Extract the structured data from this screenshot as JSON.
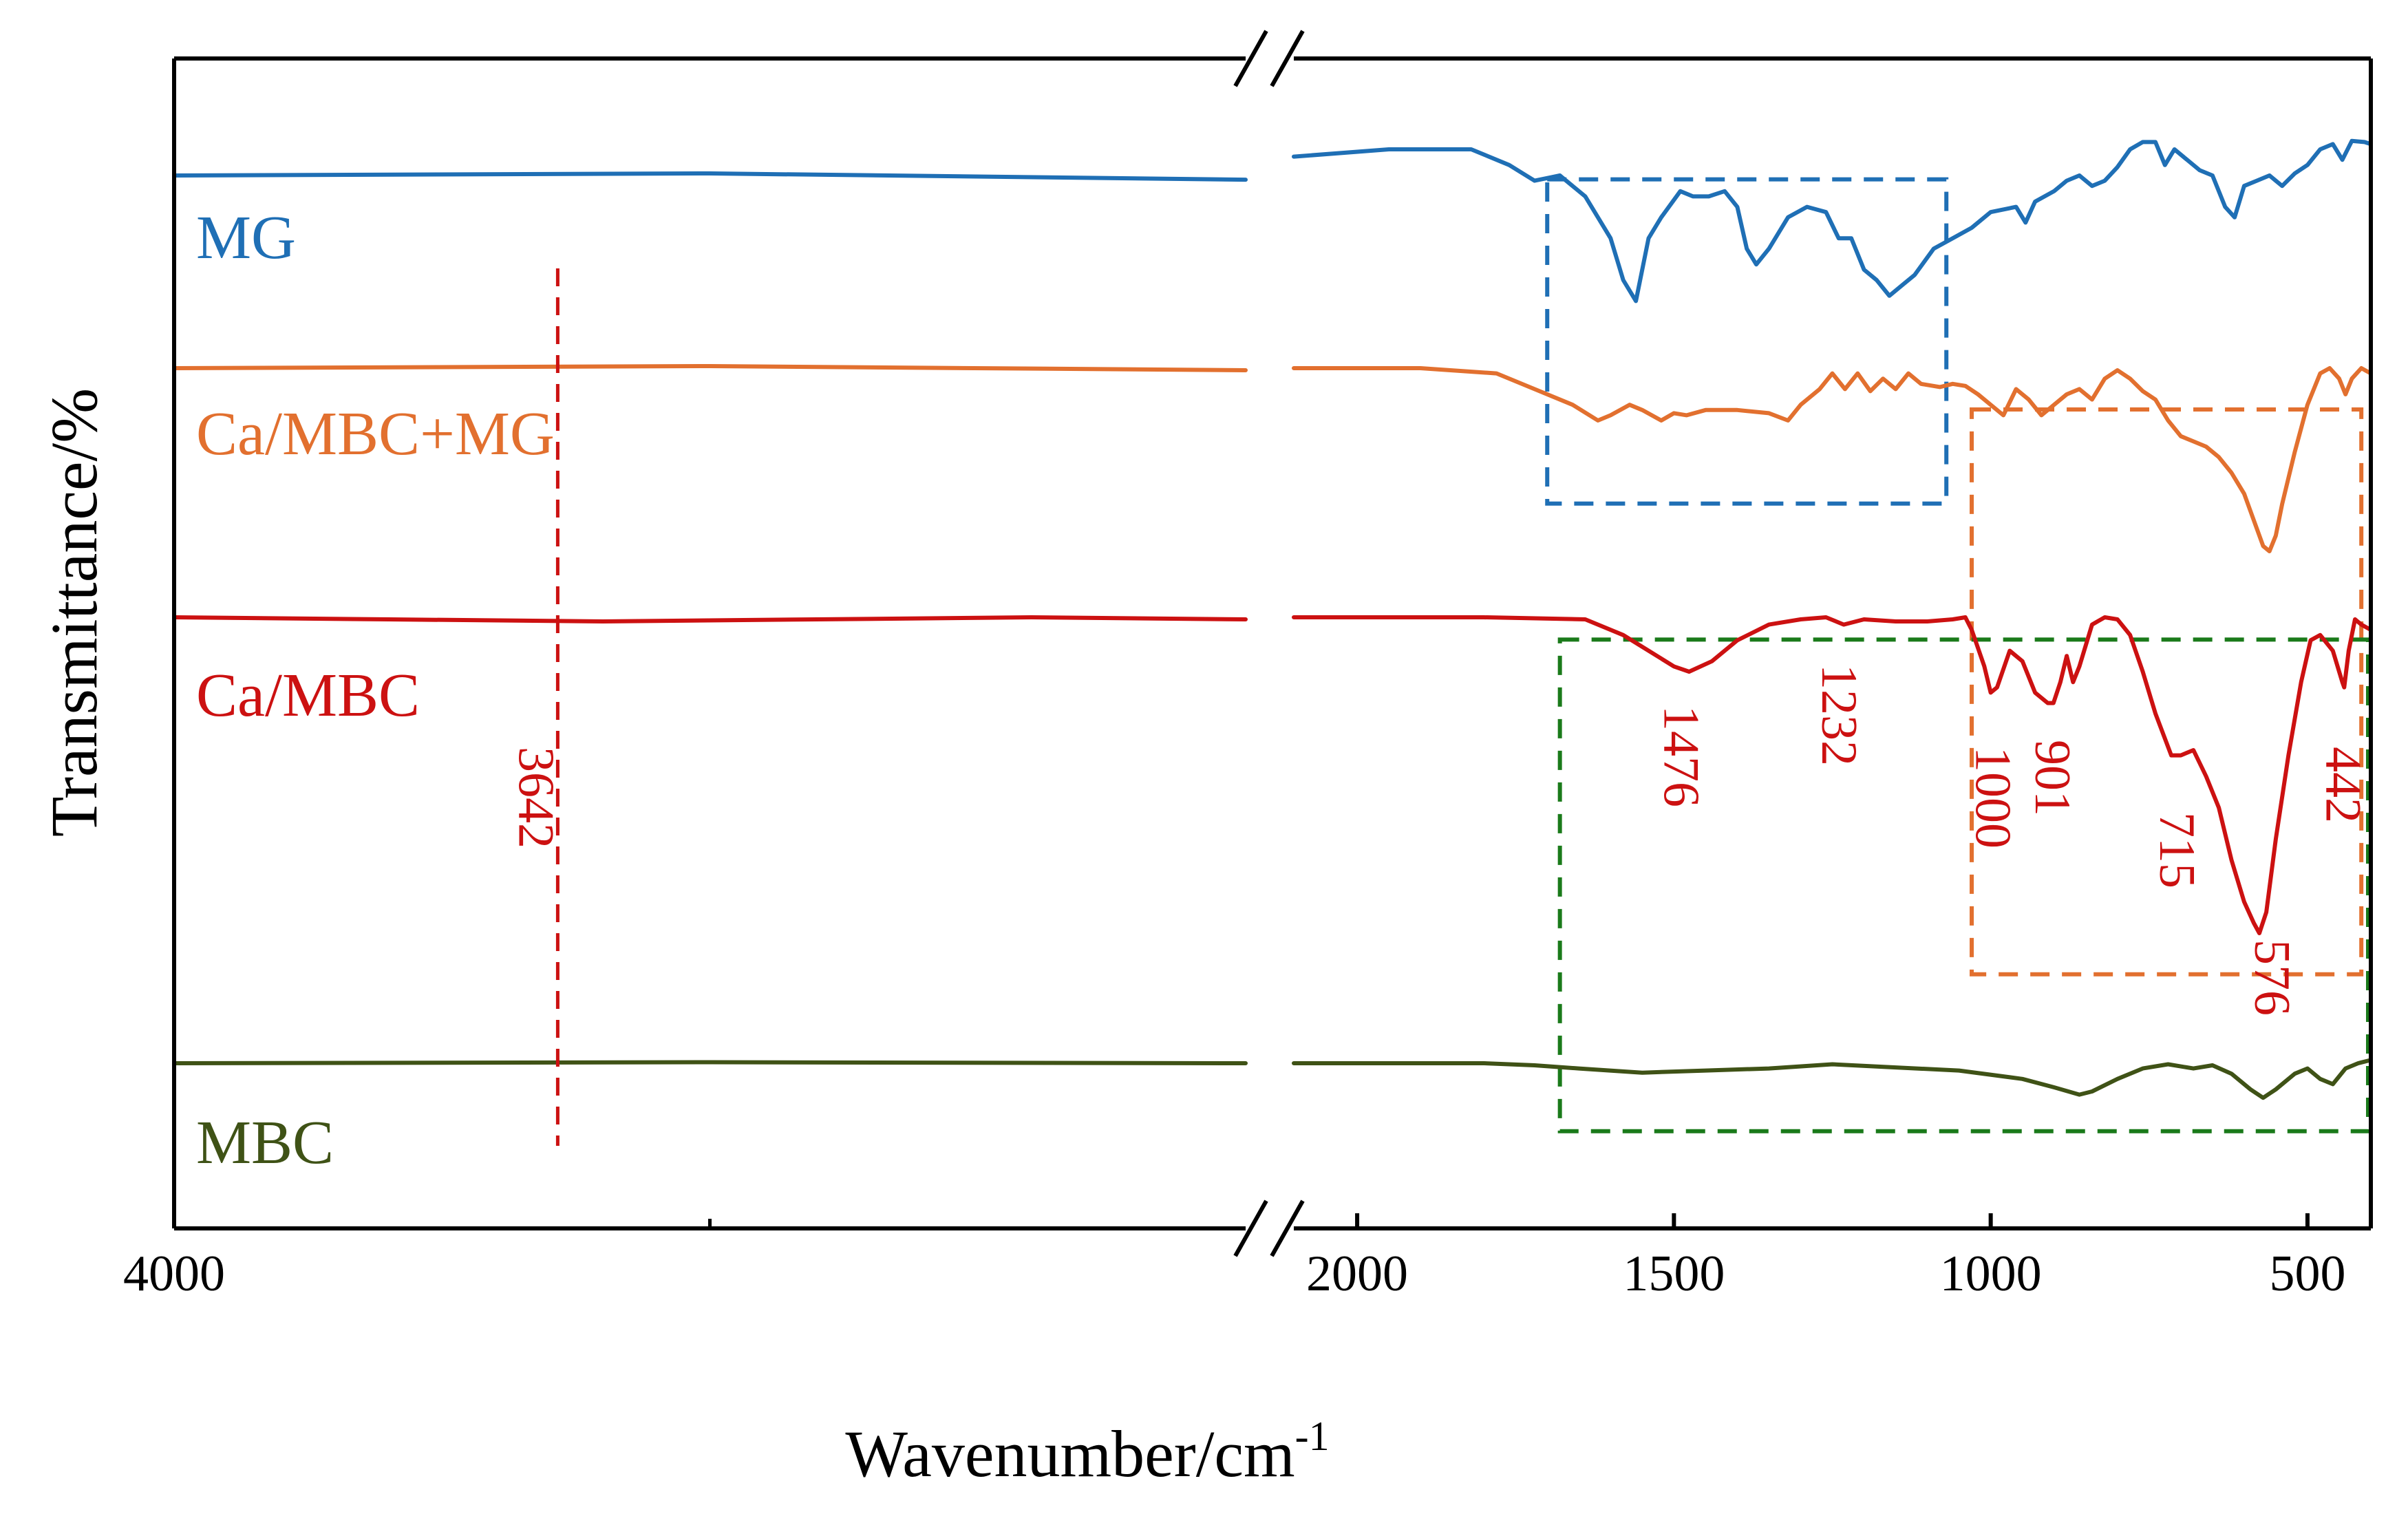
{
  "chart_data": {
    "type": "line",
    "title": "",
    "xlabel": "Wavenumber/cm",
    "xlabel_sup": "-1",
    "ylabel": "Transmittance/%",
    "x_axis": {
      "reversed": true,
      "broken": true,
      "break_between": [
        3000,
        2100
      ],
      "segments": [
        [
          4000,
          3000
        ],
        [
          2100,
          400
        ]
      ],
      "tick_labels": [
        {
          "value": 4000,
          "label": "4000"
        },
        {
          "value": 2000,
          "label": "2000"
        },
        {
          "value": 1500,
          "label": "1500"
        },
        {
          "value": 1000,
          "label": "1000"
        },
        {
          "value": 500,
          "label": "500"
        }
      ],
      "minor_ticks": [
        3500
      ]
    },
    "colors": {
      "MG": "#1f6fb5",
      "Ca/MBC+MG": "#e2702f",
      "Ca/MBC": "#cc1111",
      "MBC": "#3f5216",
      "box_green": "#1a7a1a"
    },
    "series": [
      {
        "name": "MG",
        "label": "MG",
        "baseline": 0.86,
        "points": [
          [
            4000,
            0.86
          ],
          [
            3500,
            0.862
          ],
          [
            3000,
            0.856
          ],
          [
            2100,
            0.878
          ],
          [
            1950,
            0.885
          ],
          [
            1820,
            0.885
          ],
          [
            1760,
            0.87
          ],
          [
            1720,
            0.855
          ],
          [
            1680,
            0.86
          ],
          [
            1640,
            0.84
          ],
          [
            1600,
            0.8
          ],
          [
            1580,
            0.76
          ],
          [
            1560,
            0.74
          ],
          [
            1540,
            0.8
          ],
          [
            1520,
            0.82
          ],
          [
            1490,
            0.845
          ],
          [
            1470,
            0.84
          ],
          [
            1445,
            0.84
          ],
          [
            1420,
            0.845
          ],
          [
            1400,
            0.83
          ],
          [
            1385,
            0.79
          ],
          [
            1370,
            0.775
          ],
          [
            1350,
            0.79
          ],
          [
            1320,
            0.82
          ],
          [
            1290,
            0.83
          ],
          [
            1260,
            0.825
          ],
          [
            1240,
            0.8
          ],
          [
            1220,
            0.8
          ],
          [
            1200,
            0.77
          ],
          [
            1180,
            0.76
          ],
          [
            1160,
            0.745
          ],
          [
            1140,
            0.755
          ],
          [
            1120,
            0.765
          ],
          [
            1090,
            0.79
          ],
          [
            1060,
            0.8
          ],
          [
            1030,
            0.81
          ],
          [
            1000,
            0.825
          ],
          [
            960,
            0.83
          ],
          [
            945,
            0.815
          ],
          [
            930,
            0.835
          ],
          [
            900,
            0.845
          ],
          [
            880,
            0.855
          ],
          [
            860,
            0.86
          ],
          [
            840,
            0.85
          ],
          [
            820,
            0.855
          ],
          [
            800,
            0.868
          ],
          [
            780,
            0.885
          ],
          [
            760,
            0.892
          ],
          [
            740,
            0.892
          ],
          [
            725,
            0.87
          ],
          [
            710,
            0.885
          ],
          [
            690,
            0.875
          ],
          [
            670,
            0.865
          ],
          [
            650,
            0.86
          ],
          [
            630,
            0.83
          ],
          [
            615,
            0.82
          ],
          [
            600,
            0.85
          ],
          [
            580,
            0.855
          ],
          [
            560,
            0.86
          ],
          [
            540,
            0.85
          ],
          [
            520,
            0.862
          ],
          [
            500,
            0.87
          ],
          [
            480,
            0.885
          ],
          [
            460,
            0.89
          ],
          [
            445,
            0.875
          ],
          [
            430,
            0.893
          ],
          [
            410,
            0.892
          ],
          [
            400,
            0.89
          ]
        ]
      },
      {
        "name": "Ca/MBC+MG",
        "label": "Ca/MBC+MG",
        "baseline": 0.65,
        "points": [
          [
            4000,
            0.65
          ],
          [
            3500,
            0.652
          ],
          [
            3000,
            0.648
          ],
          [
            2100,
            0.65
          ],
          [
            1900,
            0.65
          ],
          [
            1780,
            0.645
          ],
          [
            1720,
            0.63
          ],
          [
            1660,
            0.615
          ],
          [
            1620,
            0.6
          ],
          [
            1600,
            0.605
          ],
          [
            1570,
            0.615
          ],
          [
            1550,
            0.61
          ],
          [
            1520,
            0.6
          ],
          [
            1500,
            0.607
          ],
          [
            1480,
            0.605
          ],
          [
            1450,
            0.61
          ],
          [
            1400,
            0.61
          ],
          [
            1350,
            0.607
          ],
          [
            1320,
            0.6
          ],
          [
            1300,
            0.615
          ],
          [
            1270,
            0.63
          ],
          [
            1250,
            0.645
          ],
          [
            1230,
            0.63
          ],
          [
            1210,
            0.645
          ],
          [
            1190,
            0.628
          ],
          [
            1170,
            0.64
          ],
          [
            1150,
            0.63
          ],
          [
            1130,
            0.645
          ],
          [
            1110,
            0.635
          ],
          [
            1080,
            0.632
          ],
          [
            1060,
            0.635
          ],
          [
            1040,
            0.633
          ],
          [
            1020,
            0.625
          ],
          [
            1000,
            0.615
          ],
          [
            980,
            0.605
          ],
          [
            960,
            0.63
          ],
          [
            940,
            0.62
          ],
          [
            920,
            0.605
          ],
          [
            900,
            0.615
          ],
          [
            880,
            0.625
          ],
          [
            860,
            0.63
          ],
          [
            840,
            0.62
          ],
          [
            820,
            0.64
          ],
          [
            800,
            0.648
          ],
          [
            780,
            0.64
          ],
          [
            760,
            0.628
          ],
          [
            740,
            0.62
          ],
          [
            720,
            0.6
          ],
          [
            700,
            0.585
          ],
          [
            680,
            0.58
          ],
          [
            660,
            0.575
          ],
          [
            640,
            0.565
          ],
          [
            620,
            0.55
          ],
          [
            600,
            0.53
          ],
          [
            585,
            0.505
          ],
          [
            570,
            0.48
          ],
          [
            560,
            0.475
          ],
          [
            550,
            0.49
          ],
          [
            540,
            0.52
          ],
          [
            520,
            0.57
          ],
          [
            500,
            0.615
          ],
          [
            480,
            0.645
          ],
          [
            465,
            0.65
          ],
          [
            450,
            0.64
          ],
          [
            440,
            0.625
          ],
          [
            430,
            0.64
          ],
          [
            415,
            0.65
          ],
          [
            400,
            0.645
          ]
        ]
      },
      {
        "name": "Ca/MBC",
        "label": "Ca/MBC",
        "baseline": 0.43,
        "points": [
          [
            4000,
            0.432
          ],
          [
            3800,
            0.43
          ],
          [
            3600,
            0.428
          ],
          [
            3400,
            0.43
          ],
          [
            3200,
            0.432
          ],
          [
            3000,
            0.43
          ],
          [
            2100,
            0.432
          ],
          [
            1800,
            0.432
          ],
          [
            1640,
            0.43
          ],
          [
            1580,
            0.415
          ],
          [
            1540,
            0.4
          ],
          [
            1500,
            0.385
          ],
          [
            1476,
            0.38
          ],
          [
            1440,
            0.39
          ],
          [
            1400,
            0.41
          ],
          [
            1350,
            0.425
          ],
          [
            1300,
            0.43
          ],
          [
            1260,
            0.432
          ],
          [
            1232,
            0.425
          ],
          [
            1200,
            0.43
          ],
          [
            1150,
            0.428
          ],
          [
            1100,
            0.428
          ],
          [
            1060,
            0.43
          ],
          [
            1040,
            0.432
          ],
          [
            1030,
            0.42
          ],
          [
            1010,
            0.385
          ],
          [
            1000,
            0.36
          ],
          [
            990,
            0.365
          ],
          [
            970,
            0.4
          ],
          [
            950,
            0.39
          ],
          [
            930,
            0.36
          ],
          [
            910,
            0.35
          ],
          [
            901,
            0.35
          ],
          [
            890,
            0.37
          ],
          [
            880,
            0.395
          ],
          [
            870,
            0.37
          ],
          [
            860,
            0.385
          ],
          [
            840,
            0.425
          ],
          [
            820,
            0.432
          ],
          [
            800,
            0.43
          ],
          [
            780,
            0.415
          ],
          [
            760,
            0.38
          ],
          [
            740,
            0.34
          ],
          [
            715,
            0.3
          ],
          [
            700,
            0.3
          ],
          [
            680,
            0.305
          ],
          [
            660,
            0.28
          ],
          [
            640,
            0.25
          ],
          [
            620,
            0.2
          ],
          [
            600,
            0.16
          ],
          [
            585,
            0.14
          ],
          [
            576,
            0.13
          ],
          [
            565,
            0.15
          ],
          [
            550,
            0.22
          ],
          [
            530,
            0.3
          ],
          [
            510,
            0.37
          ],
          [
            495,
            0.41
          ],
          [
            480,
            0.415
          ],
          [
            460,
            0.4
          ],
          [
            445,
            0.37
          ],
          [
            442,
            0.365
          ],
          [
            435,
            0.4
          ],
          [
            425,
            0.43
          ],
          [
            415,
            0.425
          ],
          [
            400,
            0.42
          ]
        ]
      },
      {
        "name": "MBC",
        "label": "MBC",
        "baseline": 0.045,
        "points": [
          [
            4000,
            0.045
          ],
          [
            3500,
            0.046
          ],
          [
            3000,
            0.045
          ],
          [
            2100,
            0.045
          ],
          [
            1800,
            0.045
          ],
          [
            1720,
            0.043
          ],
          [
            1650,
            0.04
          ],
          [
            1550,
            0.036
          ],
          [
            1450,
            0.038
          ],
          [
            1350,
            0.04
          ],
          [
            1250,
            0.044
          ],
          [
            1150,
            0.041
          ],
          [
            1050,
            0.038
          ],
          [
            950,
            0.03
          ],
          [
            900,
            0.022
          ],
          [
            860,
            0.015
          ],
          [
            840,
            0.018
          ],
          [
            800,
            0.03
          ],
          [
            760,
            0.04
          ],
          [
            720,
            0.044
          ],
          [
            680,
            0.04
          ],
          [
            650,
            0.043
          ],
          [
            620,
            0.035
          ],
          [
            590,
            0.02
          ],
          [
            570,
            0.012
          ],
          [
            550,
            0.02
          ],
          [
            520,
            0.035
          ],
          [
            500,
            0.04
          ],
          [
            480,
            0.03
          ],
          [
            460,
            0.025
          ],
          [
            440,
            0.04
          ],
          [
            420,
            0.045
          ],
          [
            400,
            0.048
          ]
        ]
      }
    ],
    "peak_labels": [
      {
        "value": 3642,
        "label": "3642",
        "series": "Ca/MBC"
      },
      {
        "value": 1476,
        "label": "1476",
        "series": "Ca/MBC"
      },
      {
        "value": 1232,
        "label": "1232",
        "series": "Ca/MBC"
      },
      {
        "value": 1000,
        "label": "1000",
        "series": "Ca/MBC"
      },
      {
        "value": 901,
        "label": "901",
        "series": "Ca/MBC"
      },
      {
        "value": 715,
        "label": "715",
        "series": "Ca/MBC"
      },
      {
        "value": 576,
        "label": "576",
        "series": "Ca/MBC"
      },
      {
        "value": 442,
        "label": "442",
        "series": "Ca/MBC"
      }
    ],
    "peak_marker": {
      "value": 3642,
      "style": "dashed",
      "color": "#cc1111"
    },
    "highlight_boxes": [
      {
        "name": "blue-box",
        "color": "#1f6fb5",
        "x_range": [
          1700,
          1070
        ],
        "y_range": [
          0.58,
          0.89
        ]
      },
      {
        "name": "orange-box",
        "color": "#e2702f",
        "x_range": [
          1030,
          415
        ],
        "y_range": [
          0.13,
          0.67
        ]
      },
      {
        "name": "green-box",
        "color": "#1a7a1a",
        "x_range": [
          1680,
          400
        ],
        "y_range": [
          -0.02,
          0.45
        ]
      }
    ]
  }
}
